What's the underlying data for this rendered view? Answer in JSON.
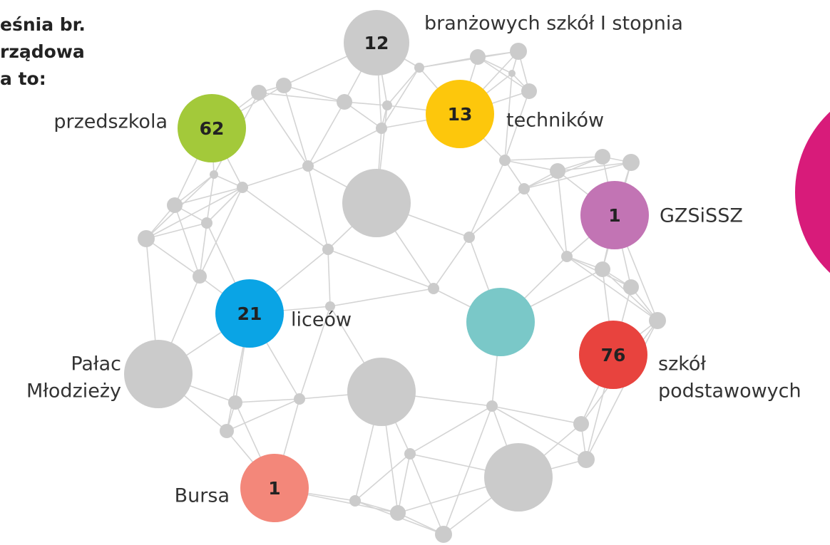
{
  "intro": [
    "eśnia br.",
    "rządowa",
    "a to:"
  ],
  "nodes": [
    {
      "value": 12,
      "label": [
        "branżowych szkół I stopnia"
      ],
      "color": "#cbcbcb"
    },
    {
      "value": 62,
      "label": [
        "przedszkola"
      ],
      "color": "#a3c93a"
    },
    {
      "value": 13,
      "label": [
        "techników"
      ],
      "color": "#fdc70c"
    },
    {
      "value": 1,
      "label": [
        "GZSiSSZ"
      ],
      "color": "#c274b4"
    },
    {
      "value": 21,
      "label": [
        "liceów"
      ],
      "color": "#0aa4e5"
    },
    {
      "value": 76,
      "label": [
        "szkół",
        "podstawowych"
      ],
      "color": "#e8433e"
    },
    {
      "value": 1,
      "label": [
        "Bursa"
      ],
      "color": "#f3877a"
    },
    {
      "label": [
        "Pałac",
        "Młodzieży"
      ],
      "color": "#cbcbcb"
    }
  ]
}
